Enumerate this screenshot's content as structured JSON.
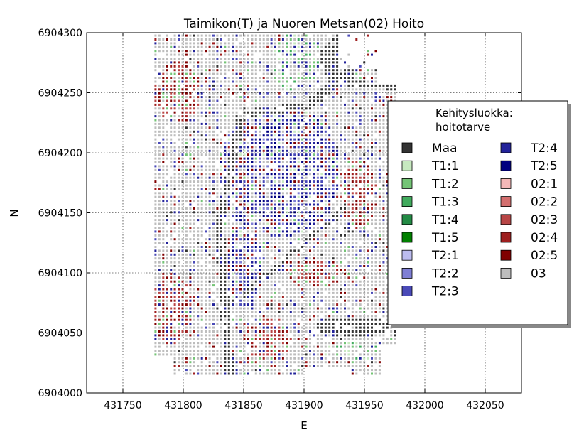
{
  "chart_data": {
    "type": "scatter",
    "title": "Taimikon(T) ja Nuoren Metsan(02) Hoito",
    "xlabel": "E",
    "ylabel": "N",
    "xlim": [
      431720,
      432080
    ],
    "ylim": [
      6904000,
      6904300
    ],
    "xticks": [
      431750,
      431800,
      431850,
      431900,
      431950,
      432000,
      432050
    ],
    "yticks": [
      6904000,
      6904050,
      6904100,
      6904150,
      6904200,
      6904250,
      6904300
    ],
    "xtick_labels": [
      "431750",
      "431800",
      "431850",
      "431900",
      "431950",
      "432000",
      "432050"
    ],
    "ytick_labels": [
      "6904000",
      "6904050",
      "6904100",
      "6904150",
      "6904200",
      "6904250",
      "6904300"
    ],
    "grid": true,
    "legend": {
      "title": "Kehitysluokka:\nhoitotarve",
      "title_lines": [
        "Kehitysluokka:",
        "hoitotarve"
      ],
      "placement": "center-right",
      "columns": 2
    },
    "series": [
      {
        "name": "Maa",
        "color": "#333333"
      },
      {
        "name": "T1:1",
        "color": "#c7e9c0"
      },
      {
        "name": "T1:2",
        "color": "#74c476"
      },
      {
        "name": "T1:3",
        "color": "#41ab5d"
      },
      {
        "name": "T1:4",
        "color": "#238b45"
      },
      {
        "name": "T1:5",
        "color": "#008000"
      },
      {
        "name": "T2:1",
        "color": "#bcbcef"
      },
      {
        "name": "T2:2",
        "color": "#7f7fd5"
      },
      {
        "name": "T2:3",
        "color": "#4a4ab8"
      },
      {
        "name": "T2:4",
        "color": "#22229a"
      },
      {
        "name": "T2:5",
        "color": "#000080"
      },
      {
        "name": "02:1",
        "color": "#f4b8b8"
      },
      {
        "name": "02:2",
        "color": "#d46e6e"
      },
      {
        "name": "02:3",
        "color": "#b84545"
      },
      {
        "name": "02:4",
        "color": "#9e1f1f"
      },
      {
        "name": "02:5",
        "color": "#800000"
      },
      {
        "name": "03",
        "color": "#bdbdbd"
      }
    ]
  }
}
